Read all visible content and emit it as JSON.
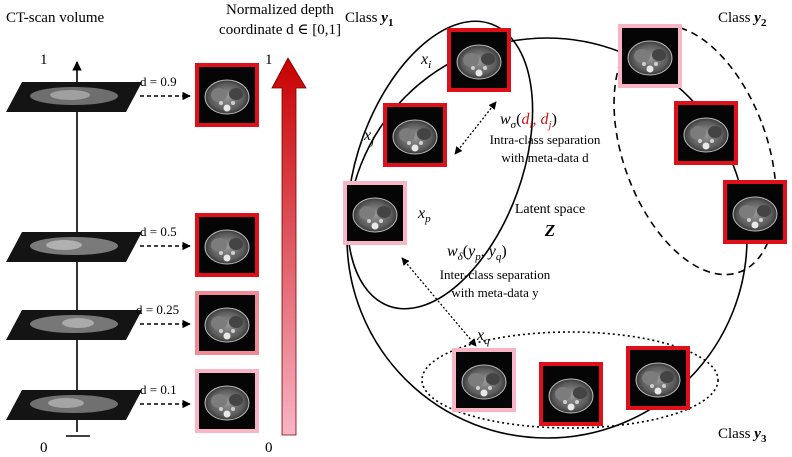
{
  "left_panel": {
    "title": "CT-scan volume",
    "axis_top": "1",
    "axis_bottom": "0",
    "slices": [
      {
        "label": "d = 0.9",
        "d": 0.9,
        "frame_color": "#e0101a"
      },
      {
        "label": "d = 0.5",
        "d": 0.5,
        "frame_color": "#e0101a"
      },
      {
        "label": "d = 0.25",
        "d": 0.25,
        "frame_color": "#f08a95"
      },
      {
        "label": "d = 0.1",
        "d": 0.1,
        "frame_color": "#f7b5c6"
      }
    ]
  },
  "depth_bar": {
    "title_line1": "Normalized depth",
    "title_line2": "coordinate d ∈ [0,1]",
    "top_label": "1",
    "bottom_label": "0",
    "gradient_top": "#c80000",
    "gradient_bottom": "#f7b5c6"
  },
  "latent": {
    "space_label": "Latent space",
    "space_symbol": "Z",
    "classes": [
      {
        "name": "Class",
        "symbol": "y",
        "sub": "1"
      },
      {
        "name": "Class",
        "symbol": "y",
        "sub": "2"
      },
      {
        "name": "Class",
        "symbol": "y",
        "sub": "3"
      }
    ],
    "points": [
      {
        "name": "x",
        "sub": "i"
      },
      {
        "name": "x",
        "sub": "j"
      },
      {
        "name": "x",
        "sub": "p"
      },
      {
        "name": "x",
        "sub": "q"
      }
    ],
    "intra": {
      "w": "w",
      "w_sub": "σ",
      "args": [
        "d",
        "i",
        "d",
        "j"
      ],
      "line1": "Intra-class separation",
      "line2": "with meta-data d"
    },
    "inter": {
      "w": "w",
      "w_sub": "δ",
      "args": [
        "y",
        "p",
        "y",
        "q"
      ],
      "line1": "Inter-class separation",
      "line2": "with meta-data y"
    },
    "frame_colors": {
      "strong": "#e0101a",
      "light": "#f7b5c6"
    }
  }
}
